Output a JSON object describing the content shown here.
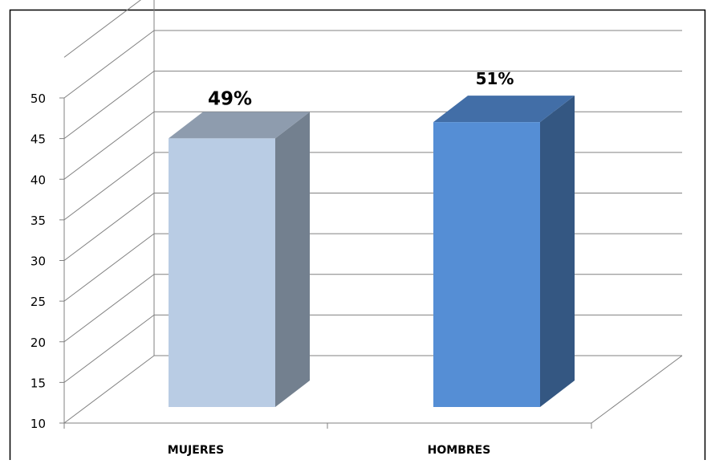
{
  "chart_data": {
    "type": "bar",
    "categories": [
      "MUJERES",
      "HOMBRES"
    ],
    "values": [
      47,
      49
    ],
    "data_labels": [
      "49%",
      "51%"
    ],
    "y_ticks": [
      "10",
      "15",
      "20",
      "25",
      "30",
      "35",
      "40",
      "45",
      "50"
    ],
    "ylim": [
      10,
      50
    ],
    "grid": true,
    "legend": "none",
    "colors": {
      "mujeres_front": "#b9cce4",
      "mujeres_side": "#73808f",
      "mujeres_top": "#8e9cae",
      "hombres_front": "#558ed5",
      "hombres_side": "#345782",
      "hombres_top": "#426ea7",
      "grid": "#808080",
      "border": "#000000"
    }
  }
}
